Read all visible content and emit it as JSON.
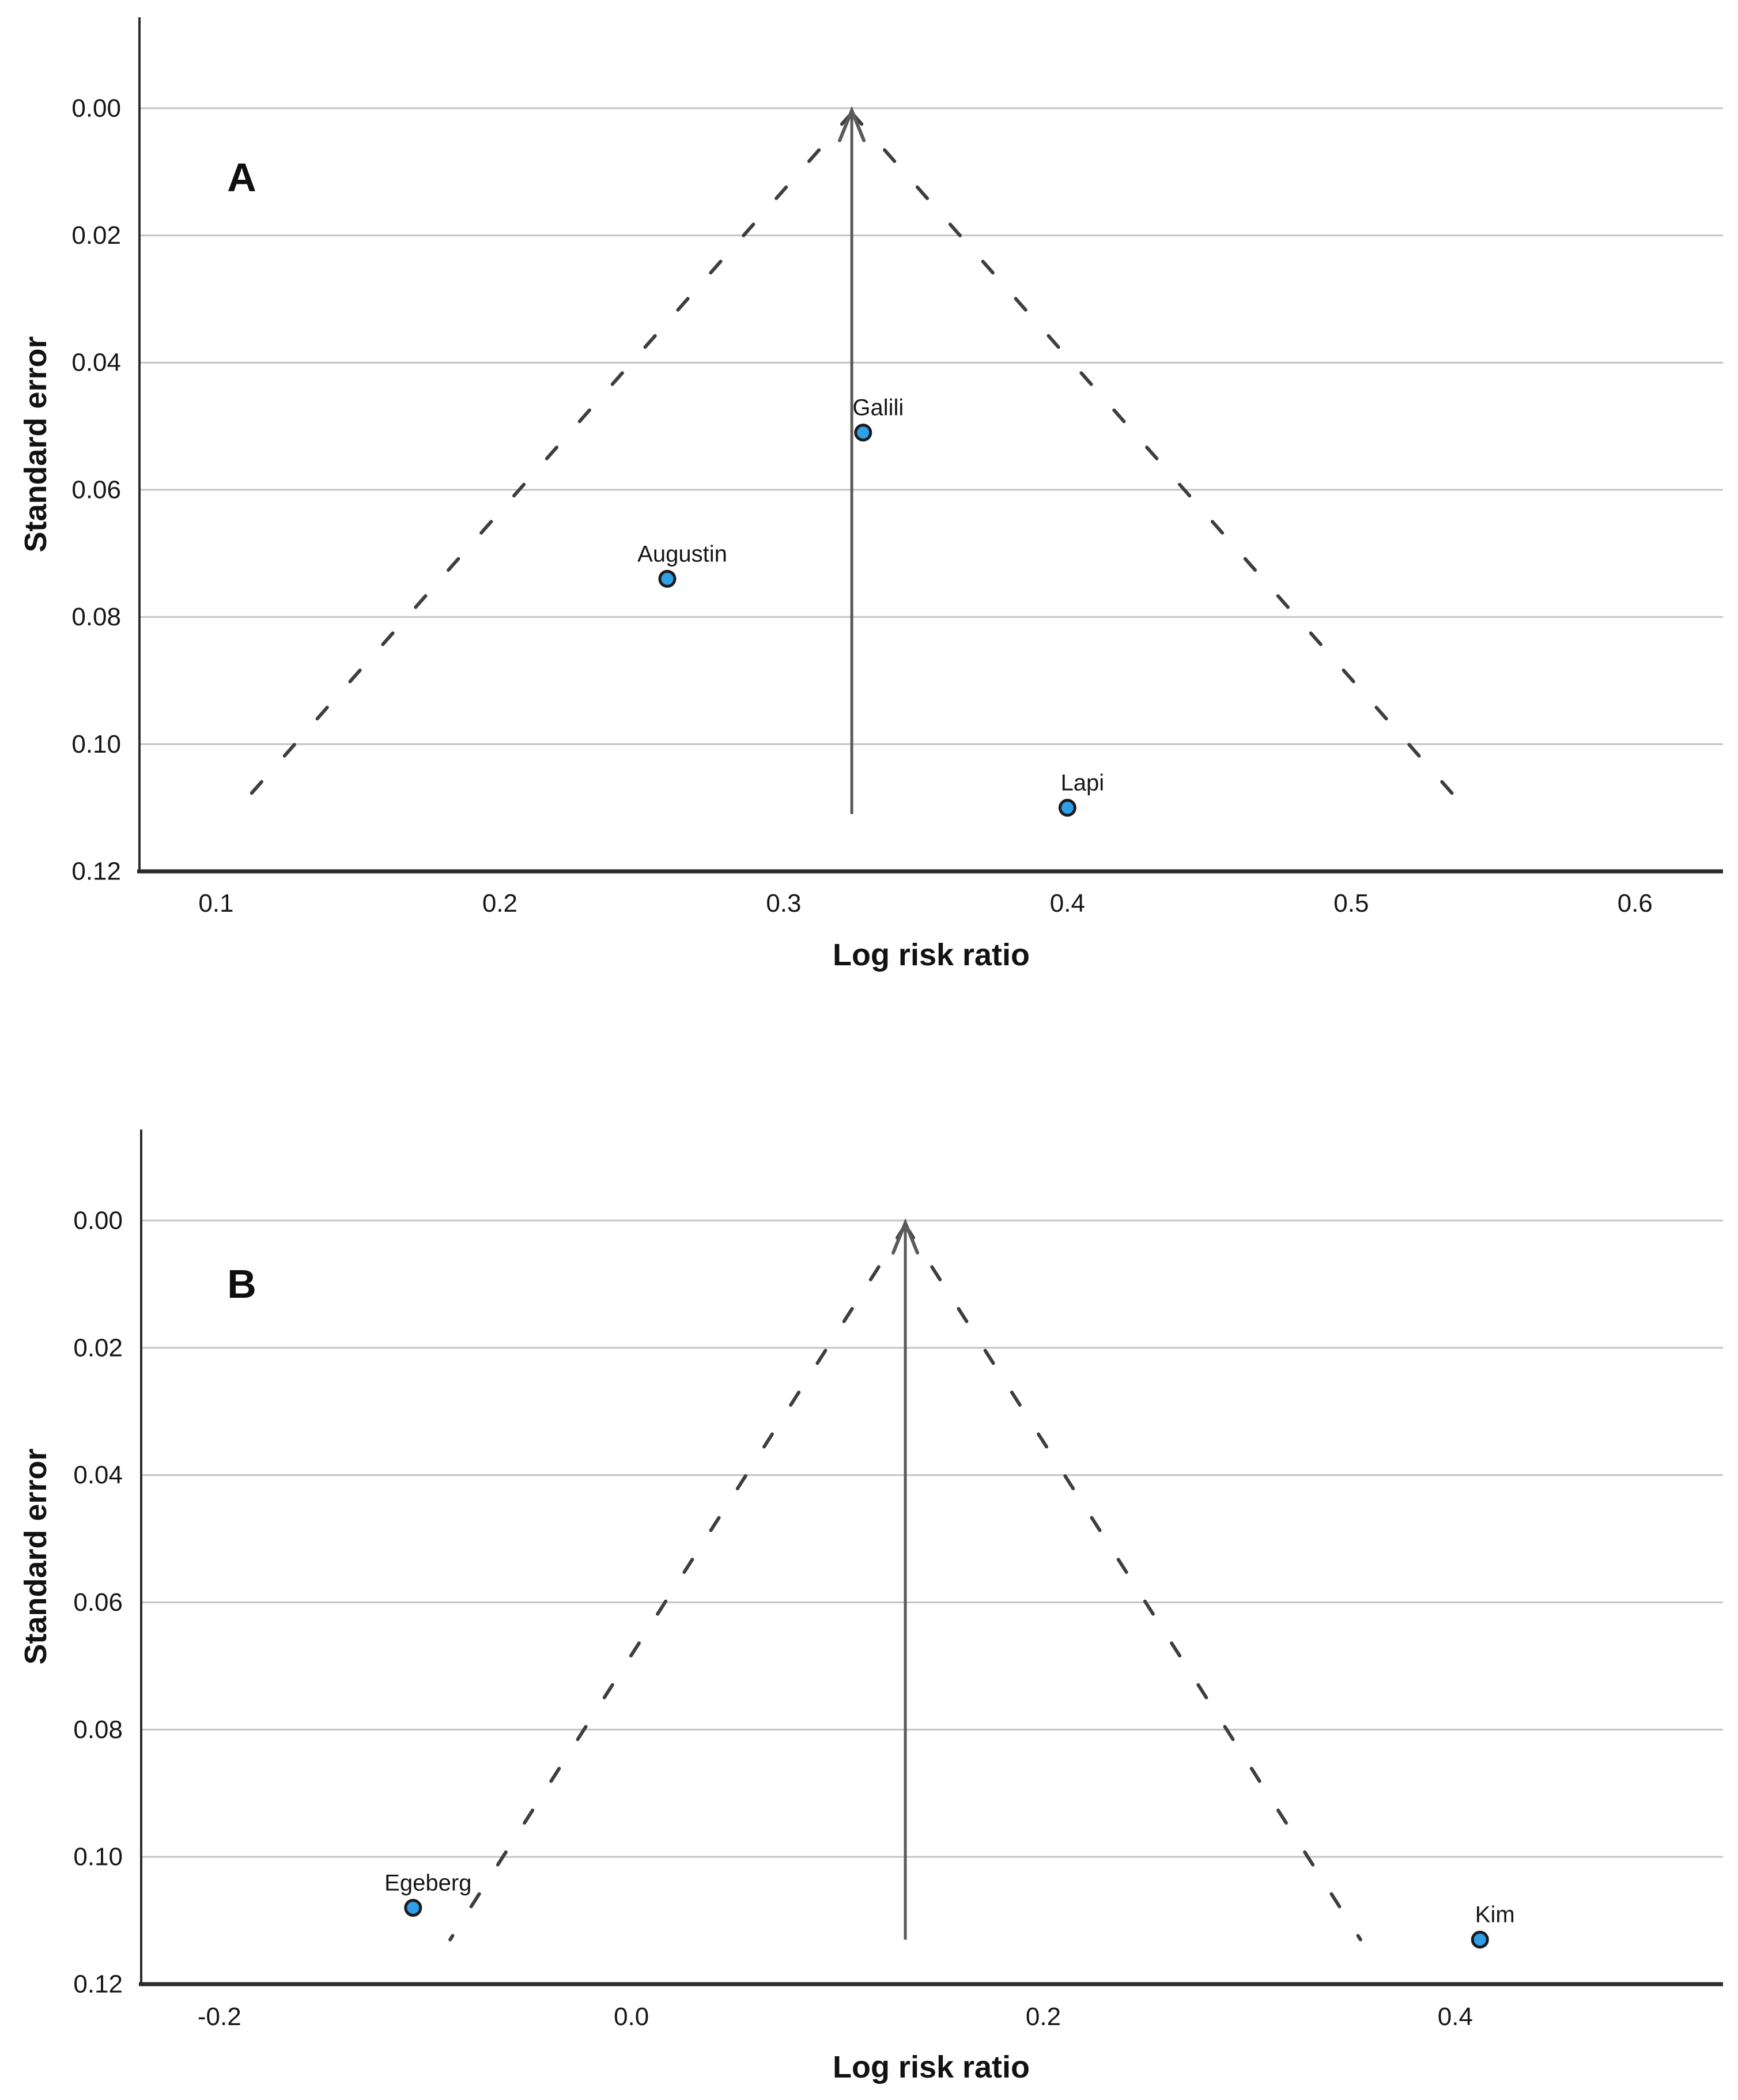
{
  "styles": {
    "background": "#ffffff",
    "point_fill": "#2f9fe8",
    "point_stroke": "#1c1c1e",
    "gridline": "#c4c4c4",
    "axis_line": "#2b2b2b",
    "funnel_center_line": "#5a5a5a",
    "funnel_dashed_line": "#3e3e3e",
    "text": "#161616"
  },
  "chart_data": [
    {
      "type": "scatter",
      "subtype": "funnel-plot",
      "panel_label": "A",
      "xlabel": "Log risk ratio",
      "ylabel": "Standard error",
      "legend": "none",
      "grid": "horizontal",
      "y_axis_direction": "inverted (0 at top)",
      "x_range": [
        0.073,
        0.631
      ],
      "y_range": [
        -0.0143,
        0.12
      ],
      "x_ticks": [
        {
          "v": 0.1,
          "label": "0.1"
        },
        {
          "v": 0.2,
          "label": "0.2"
        },
        {
          "v": 0.3,
          "label": "0.3"
        },
        {
          "v": 0.4,
          "label": "0.4"
        },
        {
          "v": 0.5,
          "label": "0.5"
        },
        {
          "v": 0.6,
          "label": "0.6"
        }
      ],
      "y_ticks": [
        {
          "v": 0.0,
          "label": "0.00"
        },
        {
          "v": 0.02,
          "label": "0.02"
        },
        {
          "v": 0.04,
          "label": "0.04"
        },
        {
          "v": 0.06,
          "label": "0.06"
        },
        {
          "v": 0.08,
          "label": "0.08"
        },
        {
          "v": 0.1,
          "label": "0.10"
        },
        {
          "v": 0.12,
          "label": "0.12"
        }
      ],
      "points": [
        {
          "label": "Galili",
          "x": 0.328,
          "y": 0.051
        },
        {
          "label": "Augustin",
          "x": 0.259,
          "y": 0.074
        },
        {
          "label": "Lapi",
          "x": 0.4,
          "y": 0.11
        }
      ],
      "funnel": {
        "center_x": 0.324,
        "apex_y": 0.0,
        "base_y": 0.111,
        "left_base_x": 0.106,
        "right_base_x": 0.542,
        "ci_multiplier": 1.96,
        "has_arrowhead": true
      }
    },
    {
      "type": "scatter",
      "subtype": "funnel-plot",
      "panel_label": "B",
      "xlabel": "Log risk ratio",
      "ylabel": "Standard error",
      "legend": "none",
      "grid": "horizontal",
      "y_axis_direction": "inverted (0 at top)",
      "x_range": [
        -0.238,
        0.53
      ],
      "y_range": [
        -0.0143,
        0.12
      ],
      "x_ticks": [
        {
          "v": -0.2,
          "label": "-0.2"
        },
        {
          "v": 0.0,
          "label": "0.0"
        },
        {
          "v": 0.2,
          "label": "0.2"
        },
        {
          "v": 0.4,
          "label": "0.4"
        }
      ],
      "y_ticks": [
        {
          "v": 0.0,
          "label": "0.00"
        },
        {
          "v": 0.02,
          "label": "0.02"
        },
        {
          "v": 0.04,
          "label": "0.04"
        },
        {
          "v": 0.06,
          "label": "0.06"
        },
        {
          "v": 0.08,
          "label": "0.08"
        },
        {
          "v": 0.1,
          "label": "0.10"
        },
        {
          "v": 0.12,
          "label": "0.12"
        }
      ],
      "points": [
        {
          "label": "Egeberg",
          "x": -0.106,
          "y": 0.108
        },
        {
          "label": "Kim",
          "x": 0.412,
          "y": 0.113
        }
      ],
      "funnel": {
        "center_x": 0.133,
        "apex_y": 0.0,
        "base_y": 0.113,
        "left_base_x": -0.088,
        "right_base_x": 0.354,
        "ci_multiplier": 1.96,
        "has_arrowhead": true
      }
    }
  ]
}
